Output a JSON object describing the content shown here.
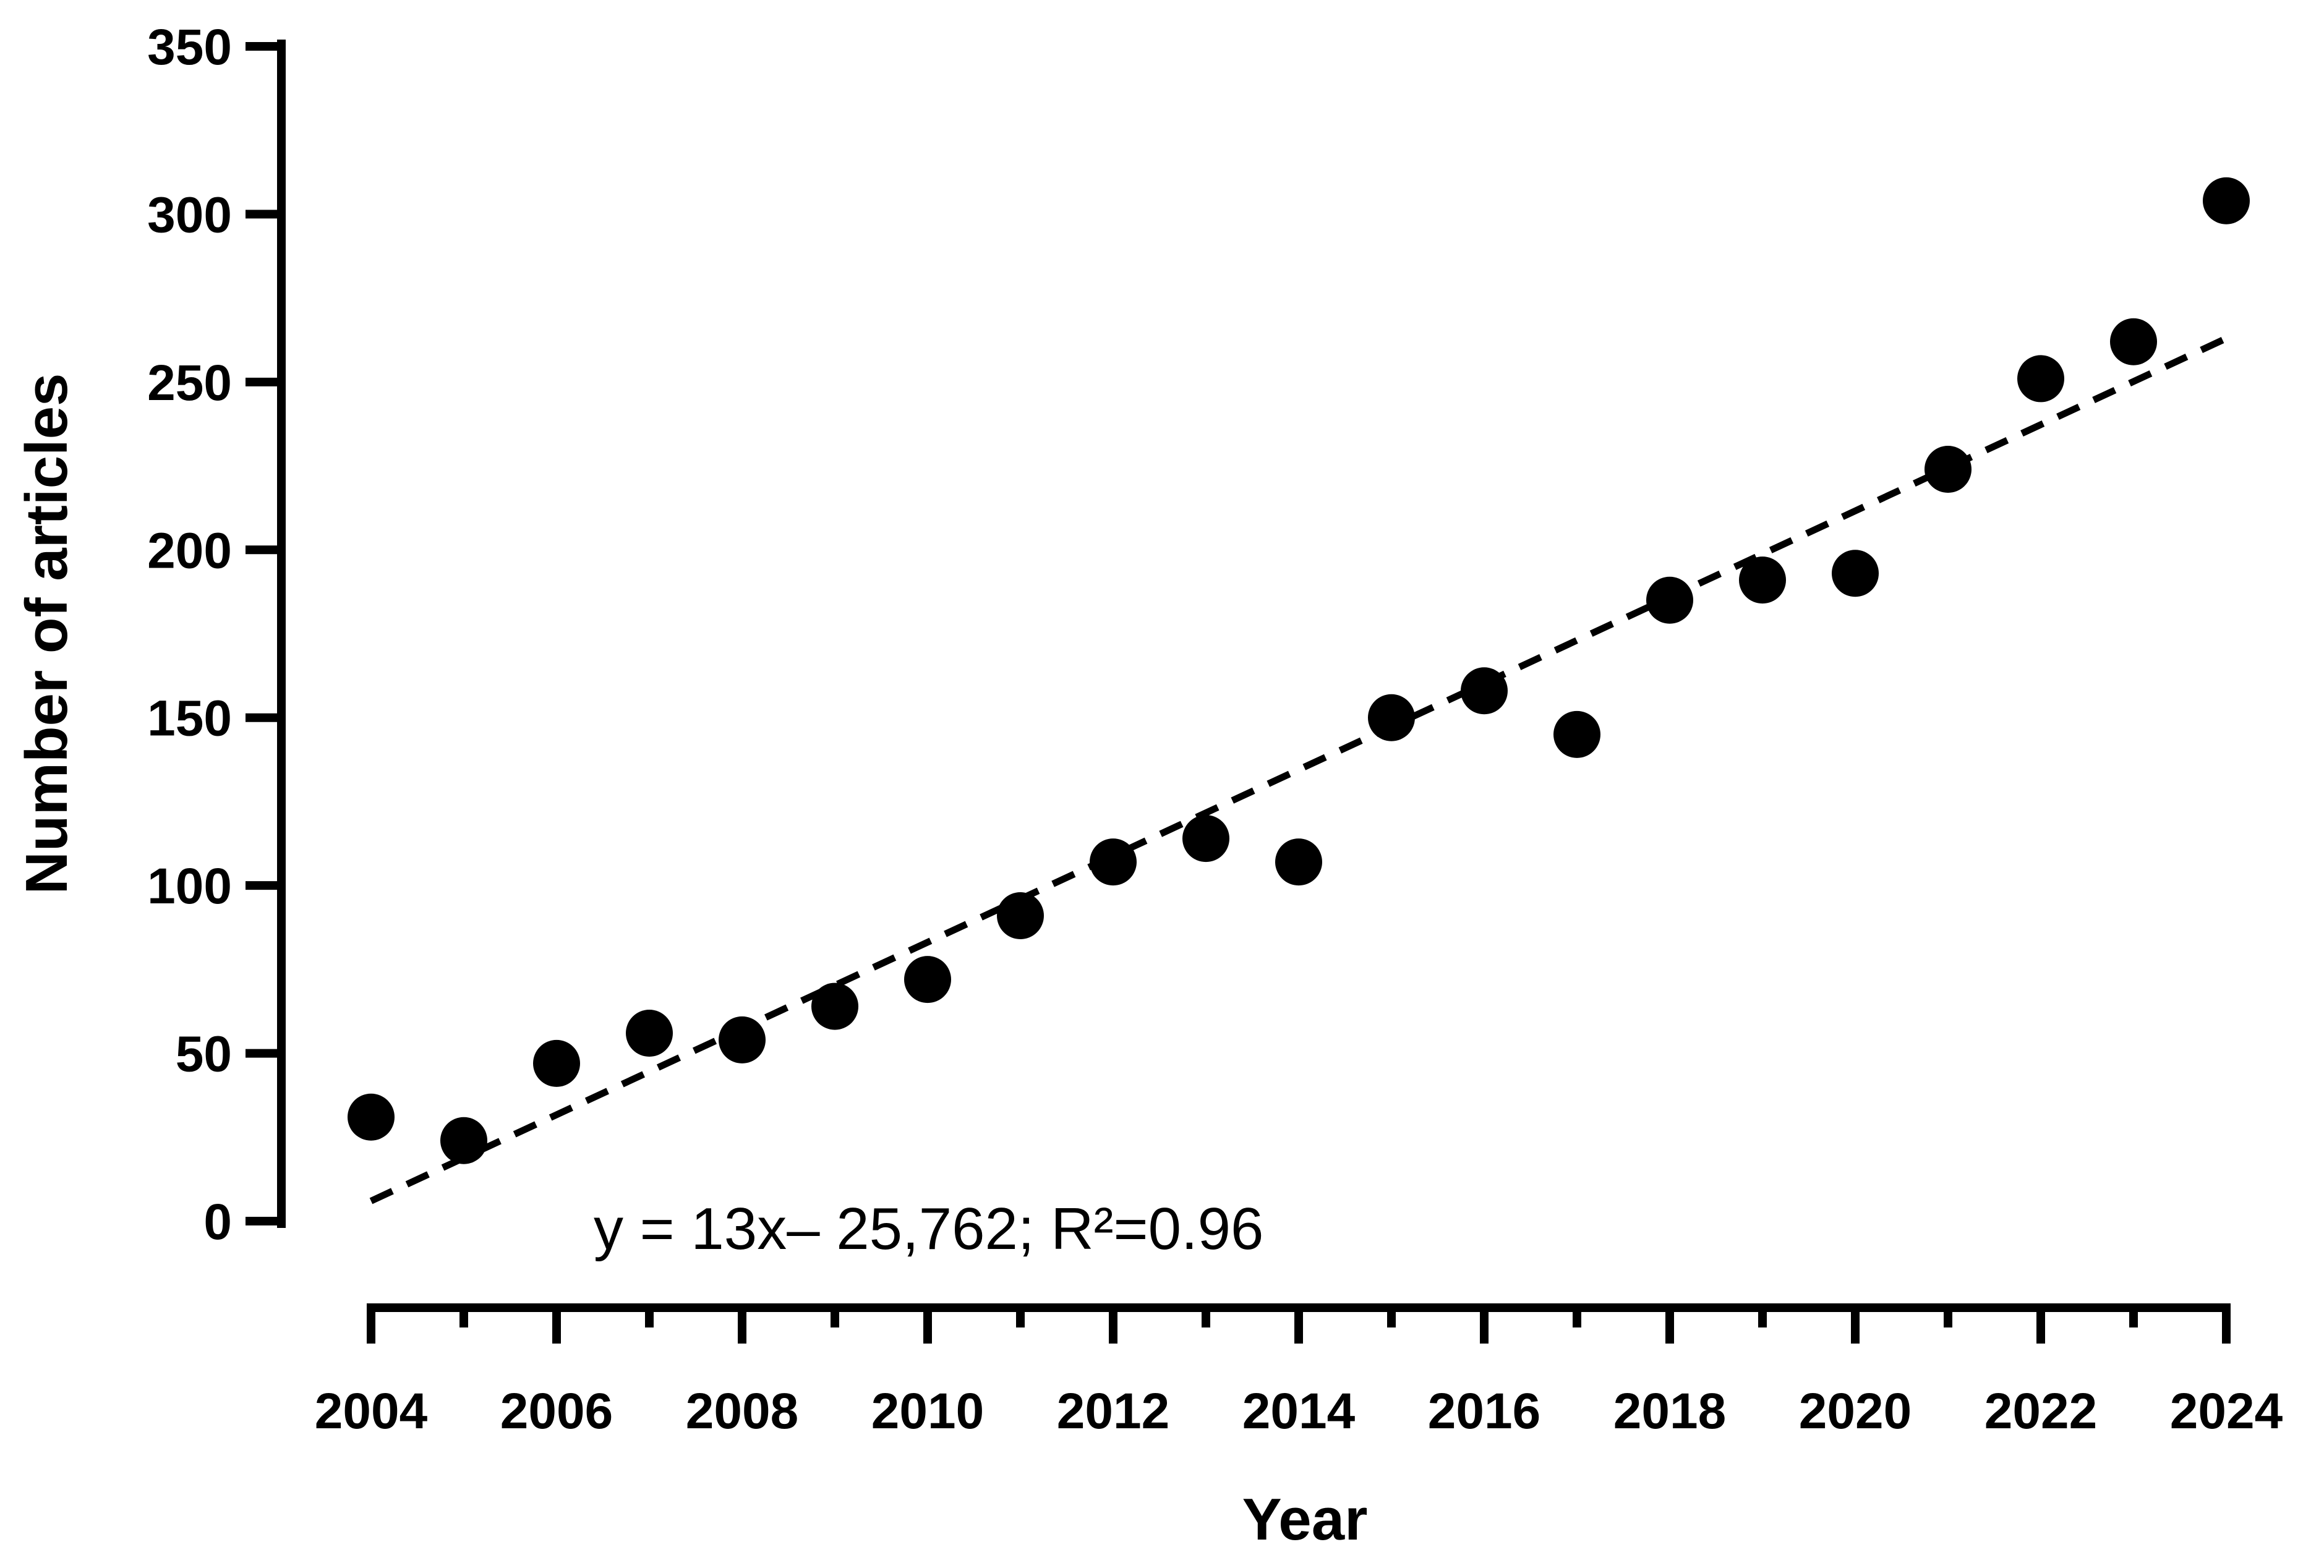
{
  "chart_data": {
    "type": "scatter",
    "xlabel": "Year",
    "ylabel": "Number of articles",
    "xlim": [
      2004,
      2024
    ],
    "ylim": [
      0,
      350
    ],
    "x_ticks": [
      "2004",
      "2006",
      "2008",
      "2010",
      "2012",
      "2014",
      "2016",
      "2018",
      "2020",
      "2022",
      "2024"
    ],
    "y_ticks": [
      "0",
      "50",
      "100",
      "150",
      "200",
      "250",
      "300",
      "350"
    ],
    "points": [
      {
        "x": 2004,
        "y": 31
      },
      {
        "x": 2005,
        "y": 24
      },
      {
        "x": 2006,
        "y": 47
      },
      {
        "x": 2007,
        "y": 56
      },
      {
        "x": 2008,
        "y": 54
      },
      {
        "x": 2009,
        "y": 64
      },
      {
        "x": 2010,
        "y": 72
      },
      {
        "x": 2011,
        "y": 91
      },
      {
        "x": 2012,
        "y": 107
      },
      {
        "x": 2013,
        "y": 114
      },
      {
        "x": 2014,
        "y": 107
      },
      {
        "x": 2015,
        "y": 150
      },
      {
        "x": 2016,
        "y": 158
      },
      {
        "x": 2017,
        "y": 145
      },
      {
        "x": 2018,
        "y": 185
      },
      {
        "x": 2019,
        "y": 191
      },
      {
        "x": 2020,
        "y": 193
      },
      {
        "x": 2021,
        "y": 224
      },
      {
        "x": 2022,
        "y": 251
      },
      {
        "x": 2023,
        "y": 262
      },
      {
        "x": 2024,
        "y": 304
      }
    ],
    "trendline": {
      "style": "dashed",
      "start": {
        "x": 2004,
        "y": 6
      },
      "end": {
        "x": 2024,
        "y": 263
      }
    },
    "annotation": "y = 13x– 25,762; R²=0.96",
    "grid": false,
    "legend": "none",
    "colors": {
      "marker": "#000000",
      "axis": "#000000",
      "trendline": "#000000"
    }
  }
}
